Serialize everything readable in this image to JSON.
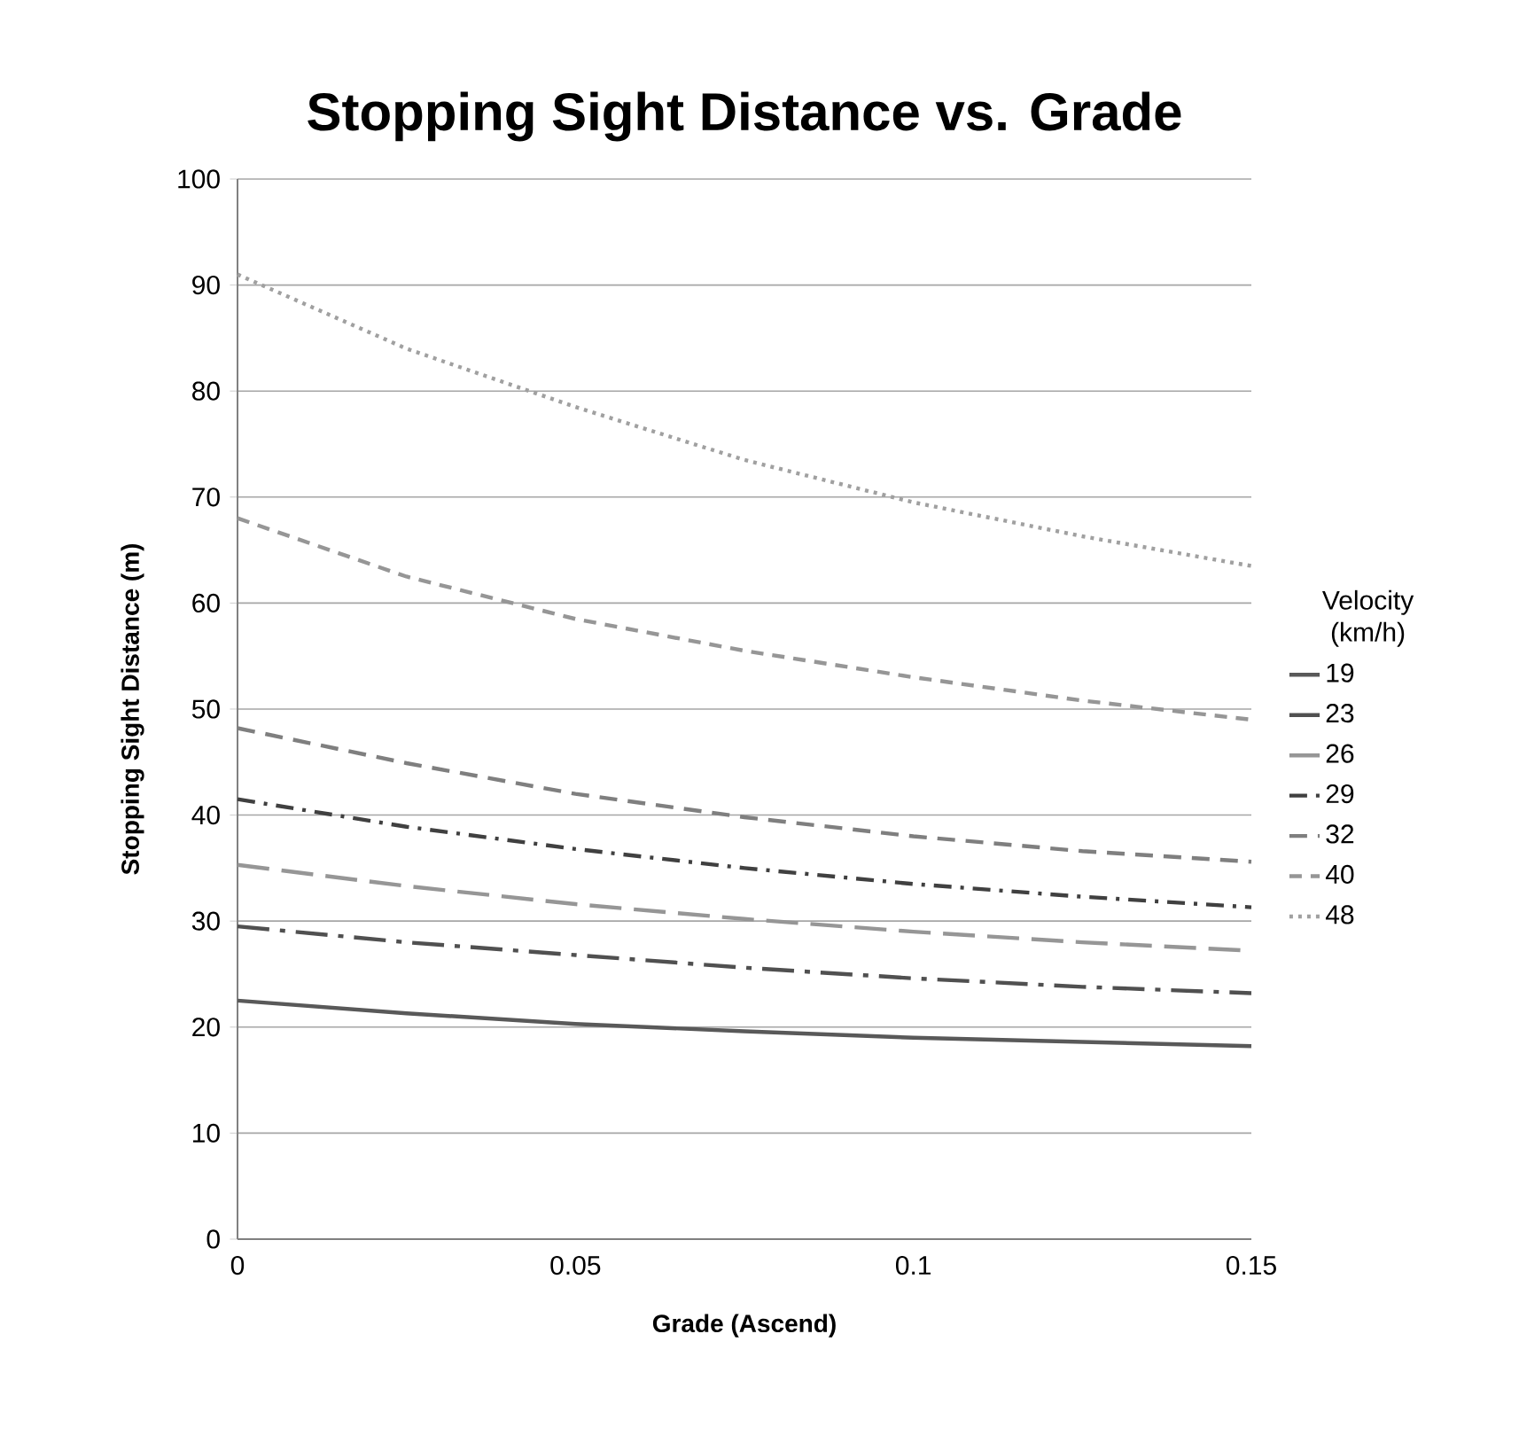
{
  "chart_data": {
    "type": "line",
    "title": "Stopping Sight Distance vs. Grade",
    "xlabel": "Grade (Ascend)",
    "ylabel": "Stopping Sight Distance (m)",
    "legend_title": "Velocity (km/h)",
    "x": [
      0,
      0.025,
      0.05,
      0.075,
      0.1,
      0.125,
      0.15
    ],
    "series": [
      {
        "name": "19",
        "color": "#595959",
        "line_style": "solid",
        "values": [
          22.5,
          21.3,
          20.3,
          19.6,
          19.0,
          18.6,
          18.2
        ]
      },
      {
        "name": "23",
        "color": "#505050",
        "line_style": "longdashdot",
        "values": [
          29.5,
          28.0,
          26.8,
          25.6,
          24.6,
          23.8,
          23.2
        ]
      },
      {
        "name": "26",
        "color": "#969696",
        "line_style": "longdash",
        "values": [
          35.3,
          33.3,
          31.6,
          30.2,
          29.0,
          28.0,
          27.2
        ]
      },
      {
        "name": "29",
        "color": "#404040",
        "line_style": "dashdot",
        "values": [
          41.5,
          38.9,
          36.8,
          35.0,
          33.5,
          32.3,
          31.3
        ]
      },
      {
        "name": "32",
        "color": "#7f7f7f",
        "line_style": "dashed",
        "values": [
          48.2,
          44.9,
          42.0,
          39.8,
          38.0,
          36.6,
          35.6
        ]
      },
      {
        "name": "40",
        "color": "#969696",
        "line_style": "shortdash",
        "values": [
          68.0,
          62.5,
          58.5,
          55.5,
          53.0,
          50.8,
          49.0
        ]
      },
      {
        "name": "48",
        "color": "#a0a0a0",
        "line_style": "dotted",
        "values": [
          91.0,
          84.0,
          78.5,
          73.5,
          69.5,
          66.3,
          63.5
        ]
      }
    ],
    "xlim": [
      0,
      0.15
    ],
    "xticks": [
      0,
      0.05,
      0.1,
      0.15
    ],
    "ylim": [
      0,
      100
    ],
    "yticks": [
      0,
      10,
      20,
      30,
      40,
      50,
      60,
      70,
      80,
      90,
      100
    ],
    "grid": "y",
    "legend": "right",
    "marker": "none"
  }
}
